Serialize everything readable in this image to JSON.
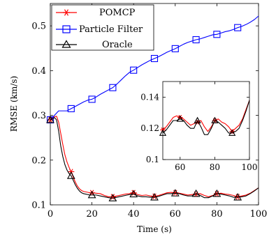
{
  "chart_data": {
    "type": "line",
    "xlabel": "Time (s)",
    "ylabel": "RMSE (km/s)",
    "xlim": [
      0,
      100
    ],
    "ylim": [
      0.1,
      0.55
    ],
    "x_ticks": [
      "0",
      "20",
      "40",
      "60",
      "80",
      "100"
    ],
    "y_ticks": [
      "0.1",
      "0.2",
      "0.3",
      "0.4",
      "0.5"
    ],
    "legend_position": "top-left",
    "grid": false,
    "series": [
      {
        "name": "POMCP",
        "color": "#ff0000",
        "marker": "star",
        "x": [
          0,
          1,
          2,
          3,
          4,
          5,
          6,
          7,
          8,
          9,
          10,
          11,
          12,
          13,
          14,
          15,
          16,
          17,
          18,
          19,
          20,
          22,
          24,
          26,
          28,
          30,
          32,
          34,
          36,
          38,
          40,
          42,
          44,
          46,
          48,
          50,
          52,
          54,
          56,
          58,
          60,
          62,
          64,
          66,
          68,
          70,
          72,
          74,
          76,
          78,
          80,
          82,
          84,
          86,
          88,
          90,
          92,
          94,
          96,
          98,
          100
        ],
        "y": [
          0.29,
          0.293,
          0.297,
          0.298,
          0.285,
          0.26,
          0.235,
          0.212,
          0.196,
          0.184,
          0.174,
          0.162,
          0.151,
          0.142,
          0.136,
          0.132,
          0.13,
          0.129,
          0.128,
          0.127,
          0.127,
          0.126,
          0.125,
          0.121,
          0.118,
          0.118,
          0.12,
          0.122,
          0.124,
          0.125,
          0.127,
          0.123,
          0.121,
          0.122,
          0.12,
          0.119,
          0.121,
          0.124,
          0.127,
          0.128,
          0.127,
          0.126,
          0.124,
          0.122,
          0.123,
          0.124,
          0.125,
          0.121,
          0.118,
          0.121,
          0.125,
          0.126,
          0.124,
          0.123,
          0.121,
          0.118,
          0.12,
          0.122,
          0.126,
          0.132,
          0.138
        ],
        "markers_at": [
          0,
          10,
          20,
          30,
          40,
          50,
          60,
          70,
          80,
          90
        ]
      },
      {
        "name": "Particle Filter",
        "color": "#0000ff",
        "marker": "square",
        "x": [
          0,
          2,
          4,
          6,
          8,
          10,
          12,
          14,
          16,
          18,
          20,
          22,
          24,
          26,
          28,
          30,
          32,
          34,
          36,
          38,
          40,
          42,
          44,
          46,
          48,
          50,
          52,
          54,
          56,
          58,
          60,
          62,
          64,
          66,
          68,
          70,
          72,
          74,
          76,
          78,
          80,
          82,
          84,
          86,
          88,
          90,
          92,
          94,
          96,
          98,
          100
        ],
        "y": [
          0.29,
          0.3,
          0.31,
          0.31,
          0.31,
          0.315,
          0.32,
          0.325,
          0.33,
          0.334,
          0.336,
          0.341,
          0.347,
          0.352,
          0.357,
          0.362,
          0.37,
          0.379,
          0.388,
          0.396,
          0.401,
          0.407,
          0.413,
          0.418,
          0.423,
          0.427,
          0.431,
          0.436,
          0.441,
          0.445,
          0.449,
          0.454,
          0.459,
          0.463,
          0.466,
          0.469,
          0.471,
          0.474,
          0.477,
          0.48,
          0.481,
          0.484,
          0.487,
          0.489,
          0.492,
          0.496,
          0.499,
          0.503,
          0.508,
          0.514,
          0.522
        ],
        "markers_at": [
          0,
          10,
          20,
          30,
          40,
          50,
          60,
          70,
          80,
          90
        ]
      },
      {
        "name": "Oracle",
        "color": "#000000",
        "marker": "triangle",
        "x": [
          0,
          1,
          2,
          3,
          4,
          5,
          6,
          7,
          8,
          9,
          10,
          11,
          12,
          13,
          14,
          15,
          16,
          17,
          18,
          19,
          20,
          22,
          24,
          26,
          28,
          30,
          32,
          34,
          36,
          38,
          40,
          42,
          44,
          46,
          48,
          50,
          52,
          54,
          56,
          58,
          60,
          62,
          64,
          66,
          68,
          70,
          72,
          74,
          76,
          78,
          80,
          82,
          84,
          86,
          88,
          90,
          92,
          94,
          96,
          98,
          100
        ],
        "y": [
          0.29,
          0.292,
          0.295,
          0.29,
          0.265,
          0.232,
          0.208,
          0.19,
          0.178,
          0.17,
          0.165,
          0.155,
          0.145,
          0.137,
          0.131,
          0.127,
          0.125,
          0.124,
          0.123,
          0.122,
          0.122,
          0.122,
          0.12,
          0.118,
          0.116,
          0.115,
          0.117,
          0.119,
          0.121,
          0.123,
          0.124,
          0.12,
          0.118,
          0.118,
          0.117,
          0.117,
          0.119,
          0.122,
          0.125,
          0.125,
          0.126,
          0.125,
          0.122,
          0.12,
          0.12,
          0.125,
          0.121,
          0.116,
          0.116,
          0.12,
          0.125,
          0.124,
          0.122,
          0.12,
          0.117,
          0.117,
          0.118,
          0.12,
          0.125,
          0.131,
          0.138
        ],
        "markers_at": [
          0,
          10,
          20,
          30,
          40,
          50,
          60,
          70,
          80,
          90
        ]
      }
    ],
    "inset": {
      "xlim": [
        50,
        100
      ],
      "ylim": [
        0.1,
        0.15
      ],
      "x_ticks": [
        "60",
        "80",
        "100"
      ],
      "y_ticks": [
        "0.1",
        "0.12",
        "0.14"
      ]
    }
  }
}
